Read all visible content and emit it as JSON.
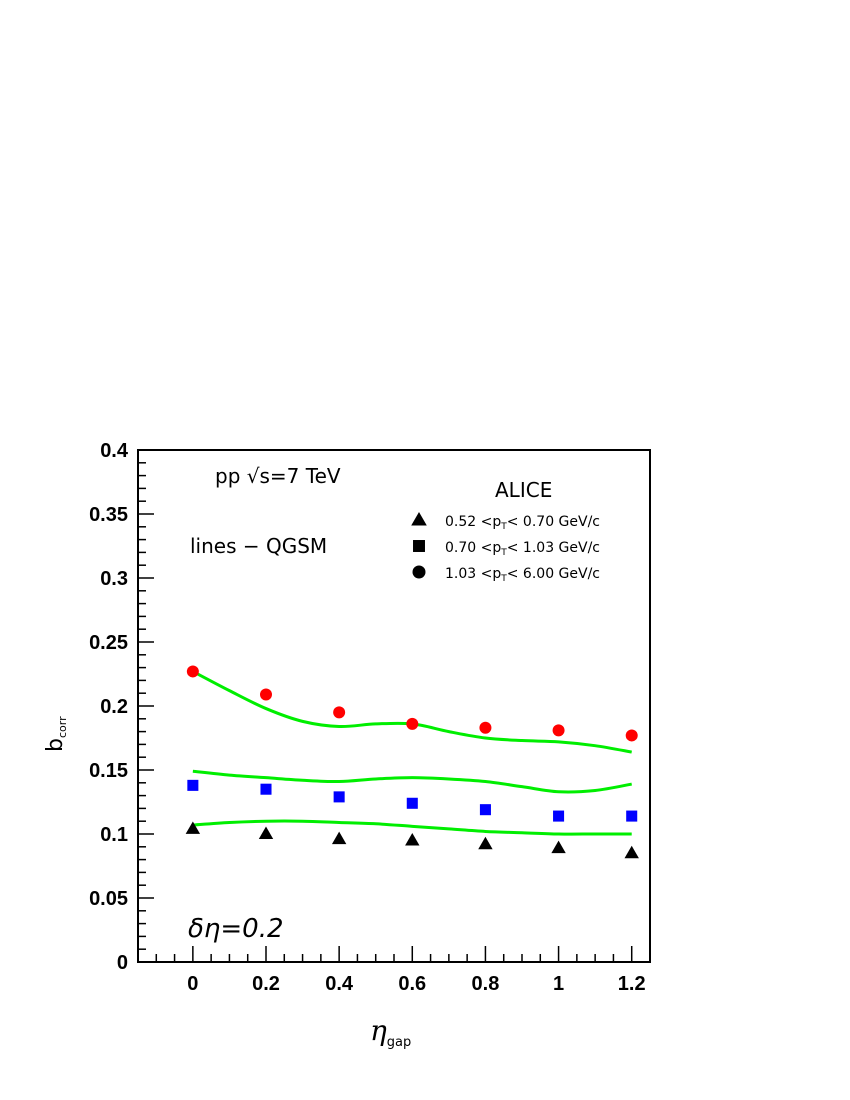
{
  "chart_data": {
    "type": "scatter",
    "xlabel": "η",
    "xlabel_sub": "gap",
    "ylabel": "b",
    "ylabel_sub": "corr",
    "xlim": [
      -0.15,
      1.25
    ],
    "ylim": [
      0,
      0.4
    ],
    "grid": false,
    "x_ticks": [
      "0",
      "0.2",
      "0.4",
      "0.6",
      "0.8",
      "1",
      "1.2"
    ],
    "y_ticks": [
      "0",
      "0.05",
      "0.1",
      "0.15",
      "0.2",
      "0.25",
      "0.3",
      "0.35",
      "0.4"
    ],
    "annotations": {
      "energy": "pp  √s=7 TeV",
      "model": "lines − QGSM",
      "window": "δη=0.2",
      "experiment": "ALICE"
    },
    "legend_placement": "top-right",
    "series": [
      {
        "name": "0.52 <pT< 0.70 GeV/c",
        "label_parts": [
          "0.52 <p",
          "T",
          "< 0.70 GeV/c"
        ],
        "marker": "triangle",
        "color": "#000000",
        "x": [
          0,
          0.2,
          0.4,
          0.6,
          0.8,
          1.0,
          1.2
        ],
        "y": [
          0.104,
          0.1,
          0.096,
          0.095,
          0.092,
          0.089,
          0.085
        ]
      },
      {
        "name": "0.70 <pT< 1.03 GeV/c",
        "label_parts": [
          "0.70 <p",
          "T",
          "< 1.03 GeV/c"
        ],
        "marker": "square",
        "color": "#0000ff",
        "x": [
          0,
          0.2,
          0.4,
          0.6,
          0.8,
          1.0,
          1.2
        ],
        "y": [
          0.138,
          0.135,
          0.129,
          0.124,
          0.119,
          0.114,
          0.114
        ]
      },
      {
        "name": "1.03 <pT< 6.00 GeV/c",
        "label_parts": [
          "1.03 <p",
          "T",
          "< 6.00 GeV/c"
        ],
        "marker": "circle",
        "color": "#ff0000",
        "x": [
          0,
          0.2,
          0.4,
          0.6,
          0.8,
          1.0,
          1.2
        ],
        "y": [
          0.227,
          0.209,
          0.195,
          0.186,
          0.183,
          0.181,
          0.177
        ]
      }
    ],
    "lines": [
      {
        "color": "#00ee00",
        "x": [
          0,
          0.1,
          0.2,
          0.3,
          0.4,
          0.5,
          0.6,
          0.7,
          0.8,
          0.9,
          1.0,
          1.1,
          1.2
        ],
        "y": [
          0.107,
          0.109,
          0.11,
          0.11,
          0.109,
          0.108,
          0.106,
          0.104,
          0.102,
          0.101,
          0.1,
          0.1,
          0.1
        ]
      },
      {
        "color": "#00ee00",
        "x": [
          0,
          0.1,
          0.2,
          0.3,
          0.4,
          0.5,
          0.6,
          0.7,
          0.8,
          0.9,
          1.0,
          1.1,
          1.2
        ],
        "y": [
          0.149,
          0.146,
          0.144,
          0.142,
          0.141,
          0.143,
          0.144,
          0.143,
          0.141,
          0.137,
          0.133,
          0.134,
          0.139
        ]
      },
      {
        "color": "#00ee00",
        "x": [
          0,
          0.1,
          0.2,
          0.3,
          0.4,
          0.5,
          0.6,
          0.7,
          0.8,
          0.9,
          1.0,
          1.1,
          1.2
        ],
        "y": [
          0.227,
          0.212,
          0.198,
          0.188,
          0.184,
          0.186,
          0.186,
          0.18,
          0.175,
          0.173,
          0.172,
          0.169,
          0.164
        ]
      }
    ]
  }
}
